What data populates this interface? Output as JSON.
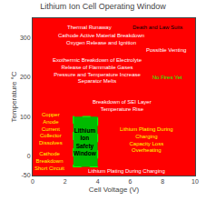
{
  "chart_data": {
    "type": "region",
    "title": "Lithium Ion Cell Operating Window",
    "xlabel": "Cell Voltage (V)",
    "ylabel": "Temperature °C",
    "xlim": [
      0,
      10
    ],
    "ylim": [
      -50,
      350
    ],
    "xticks": [
      0,
      2,
      4,
      6,
      8,
      10
    ],
    "yticks": [
      -50,
      0,
      100,
      200,
      300
    ],
    "grid": false,
    "color": "#ff0000",
    "region": {
      "x": 2.5,
      "y": -28,
      "width": 1.5,
      "height": 128,
      "color": "#00bb00",
      "label": "Lithium\nIon\nSafety\nWindow"
    },
    "annotations": [
      {
        "text": "Thermal Runaway",
        "x": 3.5,
        "y": 328,
        "color": "white"
      },
      {
        "text": "Death and Law Suits",
        "x": 7.7,
        "y": 328,
        "color": "black"
      },
      {
        "text": "Cathode Active Material Breakdown\nOxygen Release and Ignition",
        "x": 4.2,
        "y": 297,
        "color": "white"
      },
      {
        "text": "Possible Venting",
        "x": 8.2,
        "y": 268,
        "color": "white"
      },
      {
        "text": "Exothermic Breakdown of Electrolyte\nRelease of Flammable Gases\nPressure and Temperature Increase\nSeparator Melts",
        "x": 4.0,
        "y": 218,
        "color": "white"
      },
      {
        "text": "No Fires Yet",
        "x": 8.3,
        "y": 200,
        "color": "#00ff00"
      },
      {
        "text": "Breakdown of SEI Layer\nTemperature Rise",
        "x": 5.5,
        "y": 128,
        "color": "white"
      },
      {
        "text": "Lithium Plating During\nCharging\nCapacity Loss\nOverheating",
        "x": 7.0,
        "y": 42,
        "color": "yellow"
      },
      {
        "text": "Lithium Plating During Charging",
        "x": 5.8,
        "y": -38,
        "color": "white"
      },
      {
        "text": "Copper\nAnode\nCurrent\nCollector\nDissolves",
        "x": 1.1,
        "y": 68,
        "color": "yellow"
      },
      {
        "text": "Cathode\nBreakdown\nShort Circuit",
        "x": 1.05,
        "y": -12,
        "color": "yellow"
      }
    ]
  }
}
